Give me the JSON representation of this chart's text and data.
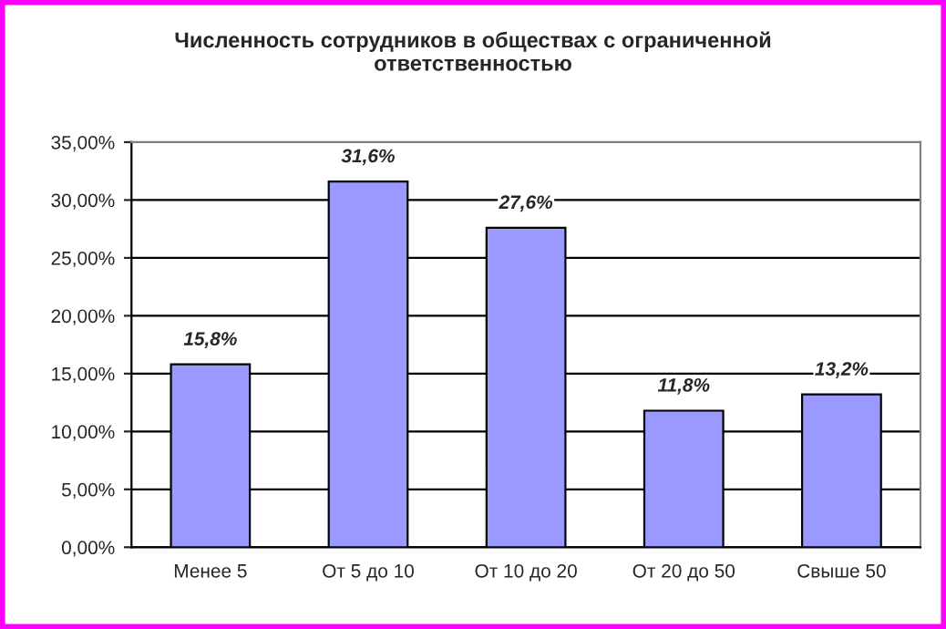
{
  "chart_data": {
    "type": "bar",
    "title": "Численность сотрудников в обществах с ограниченной\nответственностью",
    "categories": [
      "Менее 5",
      "От 5 до 10",
      "От 10 до 20",
      "От 20 до 50",
      "Свыше 50"
    ],
    "values": [
      15.8,
      31.6,
      27.6,
      11.8,
      13.2
    ],
    "value_labels": [
      "15,8%",
      "31,6%",
      "27,6%",
      "11,8%",
      "13,2%"
    ],
    "color": "#9999ff",
    "ylim": [
      0,
      35
    ],
    "yticks": [
      {
        "value": 0,
        "label": "0,00%"
      },
      {
        "value": 5,
        "label": "5,00%"
      },
      {
        "value": 10,
        "label": "10,00%"
      },
      {
        "value": 15,
        "label": "15,00%"
      },
      {
        "value": 20,
        "label": "20,00%"
      },
      {
        "value": 25,
        "label": "25,00%"
      },
      {
        "value": 30,
        "label": "30,00%"
      },
      {
        "value": 35,
        "label": "35,00%"
      }
    ],
    "grid": "y",
    "legend": false
  }
}
